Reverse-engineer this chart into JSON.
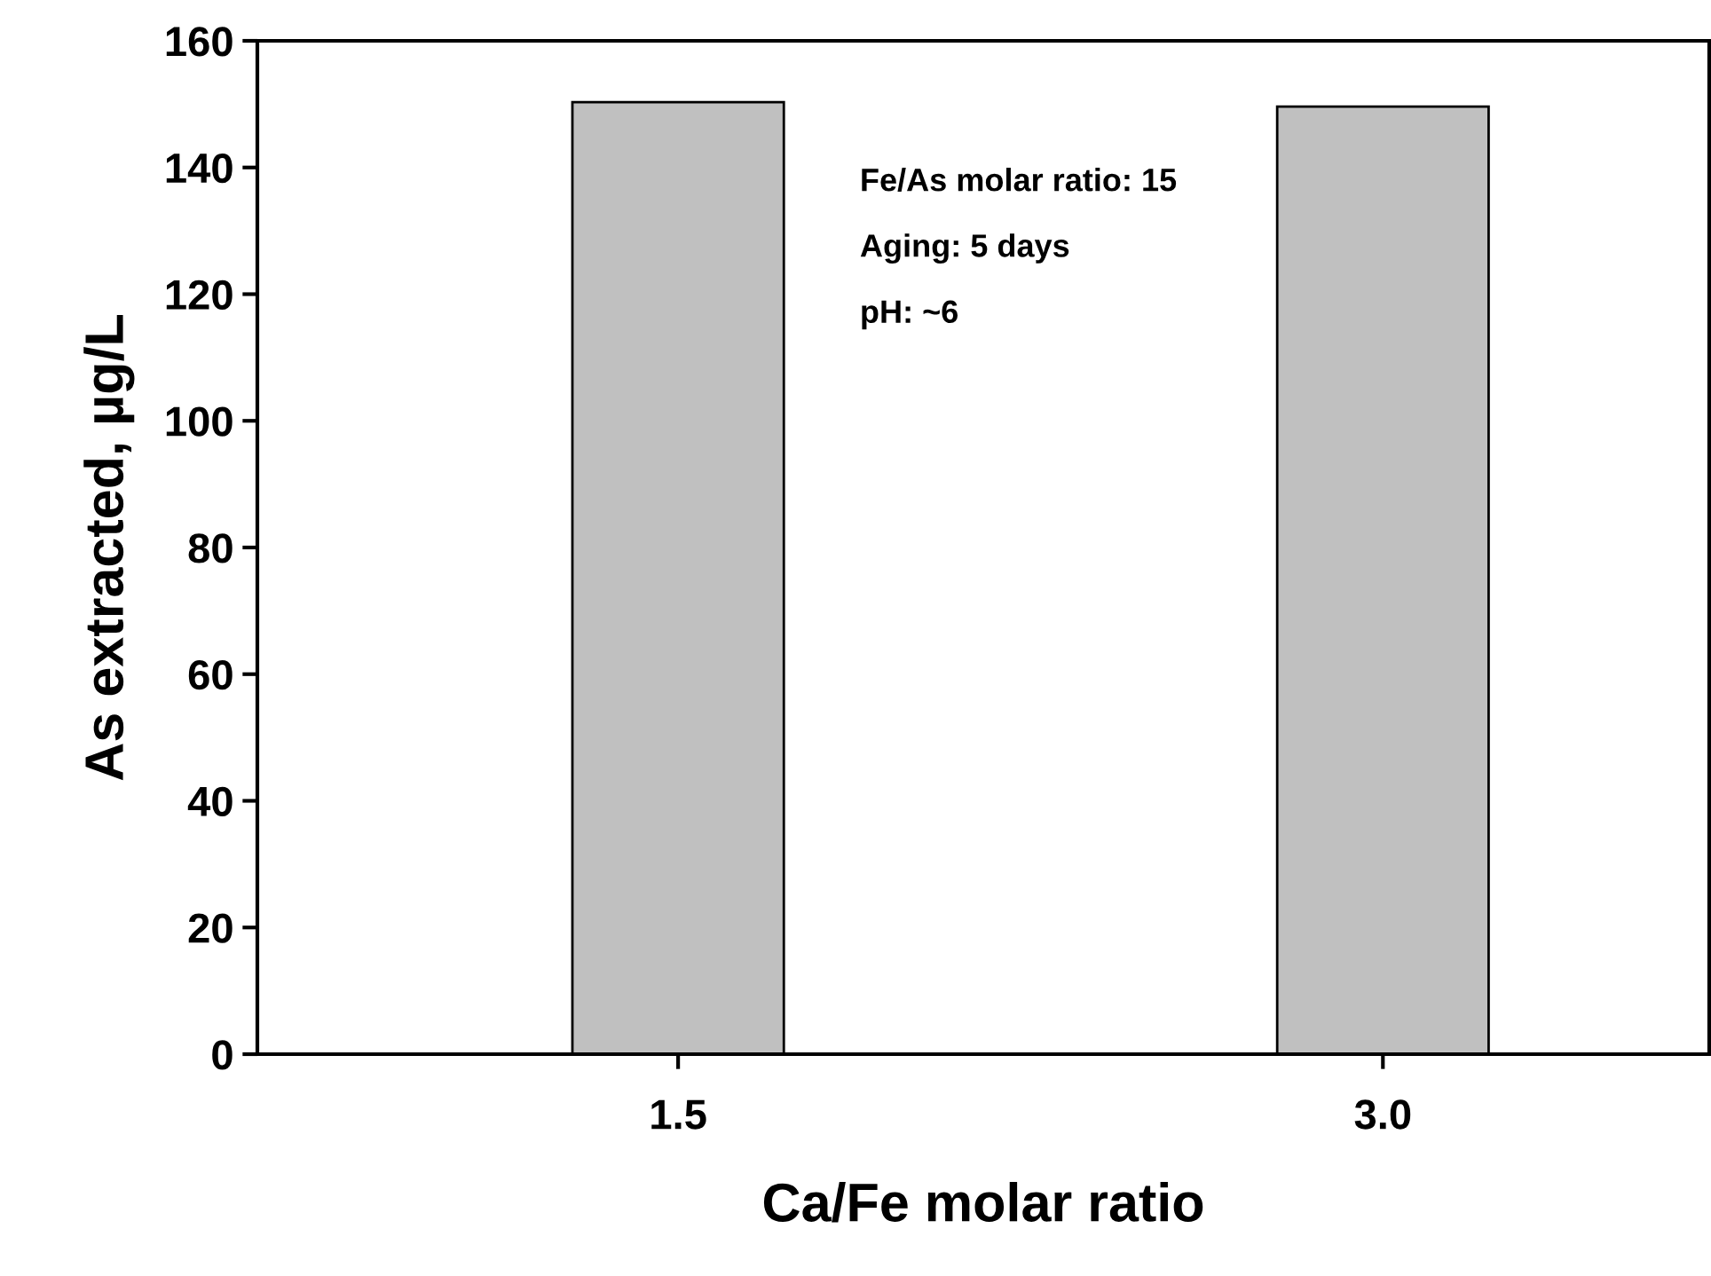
{
  "chart_data": {
    "type": "bar",
    "xlabel": "Ca/Fe molar ratio",
    "ylabel": "As extracted, µg/L",
    "categories": [
      "1.5",
      "3.0"
    ],
    "values": [
      150.3,
      149.6
    ],
    "color": "#c0c0c0",
    "ylim": [
      0,
      160
    ],
    "yticks": [
      0,
      20,
      40,
      60,
      80,
      100,
      120,
      140,
      160
    ],
    "grid": false,
    "legend": false,
    "annotations": [
      "Fe/As molar ratio: 15",
      "Aging: 5 days",
      "pH: ~6"
    ]
  }
}
